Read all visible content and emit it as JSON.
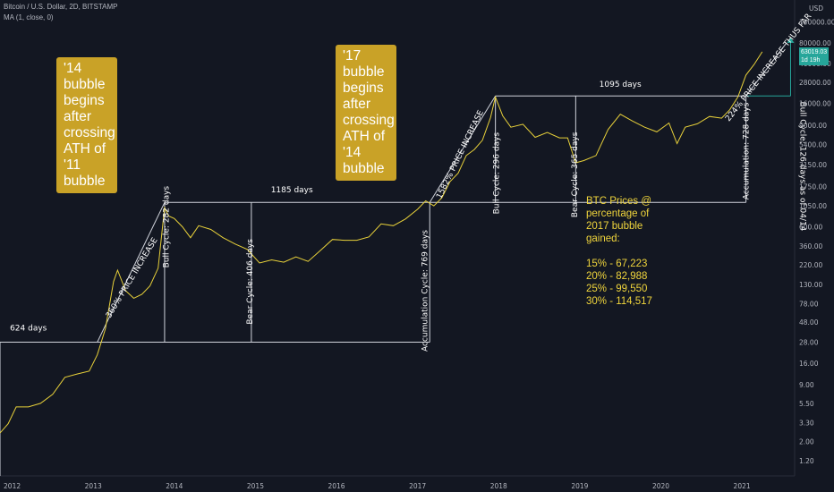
{
  "header": {
    "symbol_line": "Bitcoin / U.S. Dollar, 2D, BITSTAMP",
    "indicator_line": "MA (1, close, 0)"
  },
  "price_axis": {
    "currency": "USD",
    "last_price": "63019.03",
    "last_countdown": "1d 19h"
  },
  "callouts": [
    {
      "text": "'14\nbubble\nbegins\nafter\ncrossing\nATH of\n'11\nbubble"
    },
    {
      "text": "'17\nbubble\nbegins\nafter\ncrossing\nATH of\n'14\nbubble"
    }
  ],
  "notes": {
    "btc_prices": "BTC Prices @\npercentage of\n2017 bubble\ngained:\n\n15% - 67,223\n20% - 82,988\n25% - 99,550\n30% - 114,517"
  },
  "colors": {
    "background": "#131722",
    "price_line": "#e8d13a",
    "annotation_line": "#d1d4dc",
    "callout": "#c9a227",
    "accent_green": "#26a69a",
    "note_text": "#f0d53c"
  },
  "chart_data": {
    "type": "line",
    "scale": "log",
    "x_ticks": [
      "2012",
      "2013",
      "2014",
      "2015",
      "2016",
      "2017",
      "2018",
      "2019",
      "2020",
      "2021"
    ],
    "y_ticks": [
      "140000.00",
      "80000.00",
      "46000.00",
      "28000.00",
      "16000.00",
      "9000.00",
      "5400.00",
      "3150.00",
      "1750.00",
      "1050.00",
      "600.00",
      "360.00",
      "220.00",
      "130.00",
      "78.00",
      "48.00",
      "28.00",
      "16.00",
      "9.00",
      "5.50",
      "3.30",
      "2.00",
      "1.20"
    ],
    "series": [
      {
        "x": [
          2011.85,
          2011.95,
          2012.05,
          2012.2,
          2012.35,
          2012.5,
          2012.65,
          2012.8,
          2012.95,
          2013.05,
          2013.15,
          2013.25,
          2013.3,
          2013.4,
          2013.5,
          2013.6,
          2013.7,
          2013.8,
          2013.88,
          2013.93,
          2014.0,
          2014.1,
          2014.2,
          2014.3,
          2014.45,
          2014.6,
          2014.75,
          2014.9,
          2015.05,
          2015.2,
          2015.35,
          2015.5,
          2015.65,
          2015.8,
          2015.95,
          2016.1,
          2016.25,
          2016.4,
          2016.55,
          2016.7,
          2016.85,
          2017.0,
          2017.1,
          2017.2,
          2017.3,
          2017.4,
          2017.5,
          2017.6,
          2017.7,
          2017.8,
          2017.9,
          2017.96,
          2018.05,
          2018.15,
          2018.3,
          2018.45,
          2018.6,
          2018.75,
          2018.85,
          2018.95,
          2019.05,
          2019.2,
          2019.35,
          2019.5,
          2019.65,
          2019.8,
          2019.95,
          2020.1,
          2020.2,
          2020.3,
          2020.45,
          2020.6,
          2020.75,
          2020.85,
          2020.95,
          2021.05,
          2021.15,
          2021.25
        ],
        "y": [
          2.5,
          3.2,
          5,
          5,
          5.5,
          7,
          11,
          12,
          13,
          20,
          40,
          140,
          190,
          110,
          90,
          100,
          125,
          200,
          1000,
          800,
          750,
          600,
          450,
          620,
          560,
          450,
          380,
          330,
          230,
          250,
          235,
          270,
          240,
          320,
          430,
          420,
          420,
          460,
          650,
          620,
          740,
          960,
          1200,
          1050,
          1300,
          2000,
          2500,
          4000,
          4700,
          6000,
          11000,
          19000,
          11500,
          8500,
          9200,
          6500,
          7400,
          6400,
          6400,
          3300,
          3500,
          4000,
          8000,
          12000,
          10000,
          8500,
          7500,
          9500,
          5500,
          8500,
          9300,
          11300,
          10800,
          13500,
          19000,
          34000,
          45000,
          63019.03
        ]
      }
    ],
    "annotations": {
      "horizontal_spans": [
        "624 days",
        "1185 days",
        "1095 days"
      ],
      "cycles": [
        "Bull Cycle: 282 days",
        "Bear Cycle: 406 days",
        "Accumulation Cycle: 769 days",
        "Bull Cycle: 296 days",
        "Bear Cycle: 365 days",
        "Accumulation: 728 days",
        "Bull Cycle: 126 days as of 04/14"
      ],
      "increases": [
        "360% PRICE INCREASE",
        "1582% PRICE INCREASE",
        "224% PRICE INCREASE THUS FAR"
      ]
    }
  }
}
